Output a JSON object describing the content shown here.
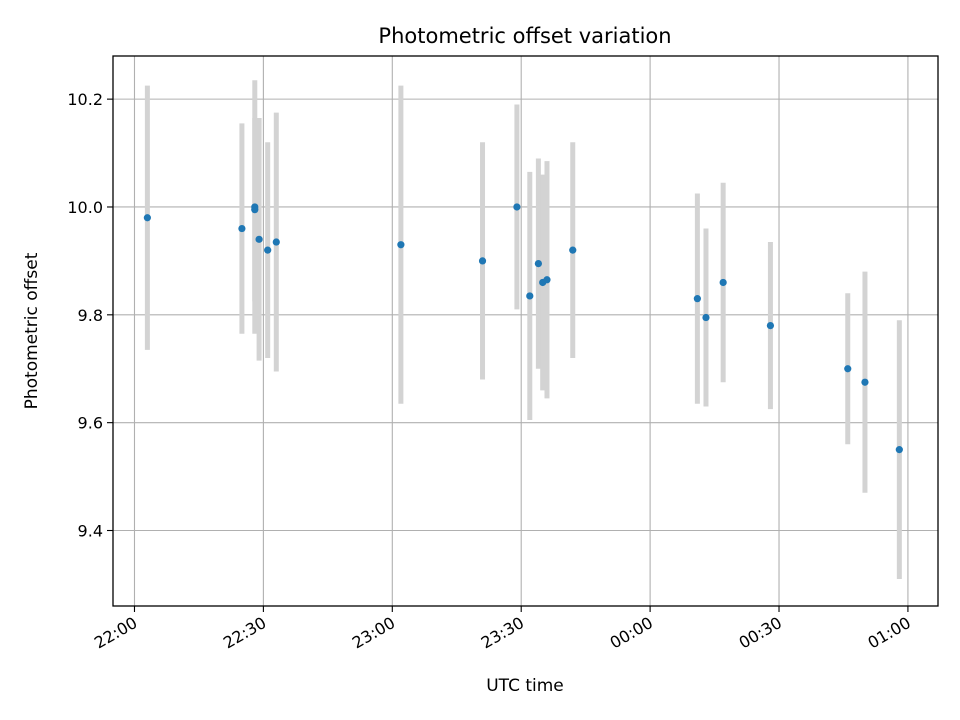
{
  "chart_data": {
    "type": "scatter",
    "title": "Photometric offset variation",
    "xlabel": "UTC time",
    "ylabel": "Photometric offset",
    "x_axis_type": "time",
    "xlim": [
      "21:55",
      "01:07"
    ],
    "ylim": [
      9.26,
      10.28
    ],
    "x_ticks": [
      "22:00",
      "22:30",
      "23:00",
      "23:30",
      "00:00",
      "00:30",
      "01:00"
    ],
    "y_ticks": [
      "9.4",
      "9.6",
      "9.8",
      "10.0",
      "10.2"
    ],
    "grid": true,
    "series": [
      {
        "marker_color": "#1f77b4",
        "errorbar_color": "#d3d3d3",
        "points": [
          {
            "x": "22:03",
            "y": 9.98,
            "err": 0.245
          },
          {
            "x": "22:25",
            "y": 9.96,
            "err": 0.195
          },
          {
            "x": "22:28",
            "y": 10.0,
            "err": 0.235
          },
          {
            "x": "22:28",
            "y": 9.995,
            "err": 0.17
          },
          {
            "x": "22:29",
            "y": 9.94,
            "err": 0.225
          },
          {
            "x": "22:31",
            "y": 9.92,
            "err": 0.2
          },
          {
            "x": "22:33",
            "y": 9.935,
            "err": 0.24
          },
          {
            "x": "23:02",
            "y": 9.93,
            "err": 0.295
          },
          {
            "x": "23:21",
            "y": 9.9,
            "err": 0.22
          },
          {
            "x": "23:29",
            "y": 10.0,
            "err": 0.19
          },
          {
            "x": "23:32",
            "y": 9.835,
            "err": 0.23
          },
          {
            "x": "23:34",
            "y": 9.895,
            "err": 0.195
          },
          {
            "x": "23:35",
            "y": 9.86,
            "err": 0.2
          },
          {
            "x": "23:36",
            "y": 9.865,
            "err": 0.22
          },
          {
            "x": "23:42",
            "y": 9.92,
            "err": 0.2
          },
          {
            "x": "00:11",
            "y": 9.83,
            "err": 0.195
          },
          {
            "x": "00:13",
            "y": 9.795,
            "err": 0.165
          },
          {
            "x": "00:17",
            "y": 9.86,
            "err": 0.185
          },
          {
            "x": "00:28",
            "y": 9.78,
            "err": 0.155
          },
          {
            "x": "00:46",
            "y": 9.7,
            "err": 0.14
          },
          {
            "x": "00:50",
            "y": 9.675,
            "err": 0.205
          },
          {
            "x": "00:58",
            "y": 9.55,
            "err": 0.24
          }
        ]
      }
    ]
  }
}
